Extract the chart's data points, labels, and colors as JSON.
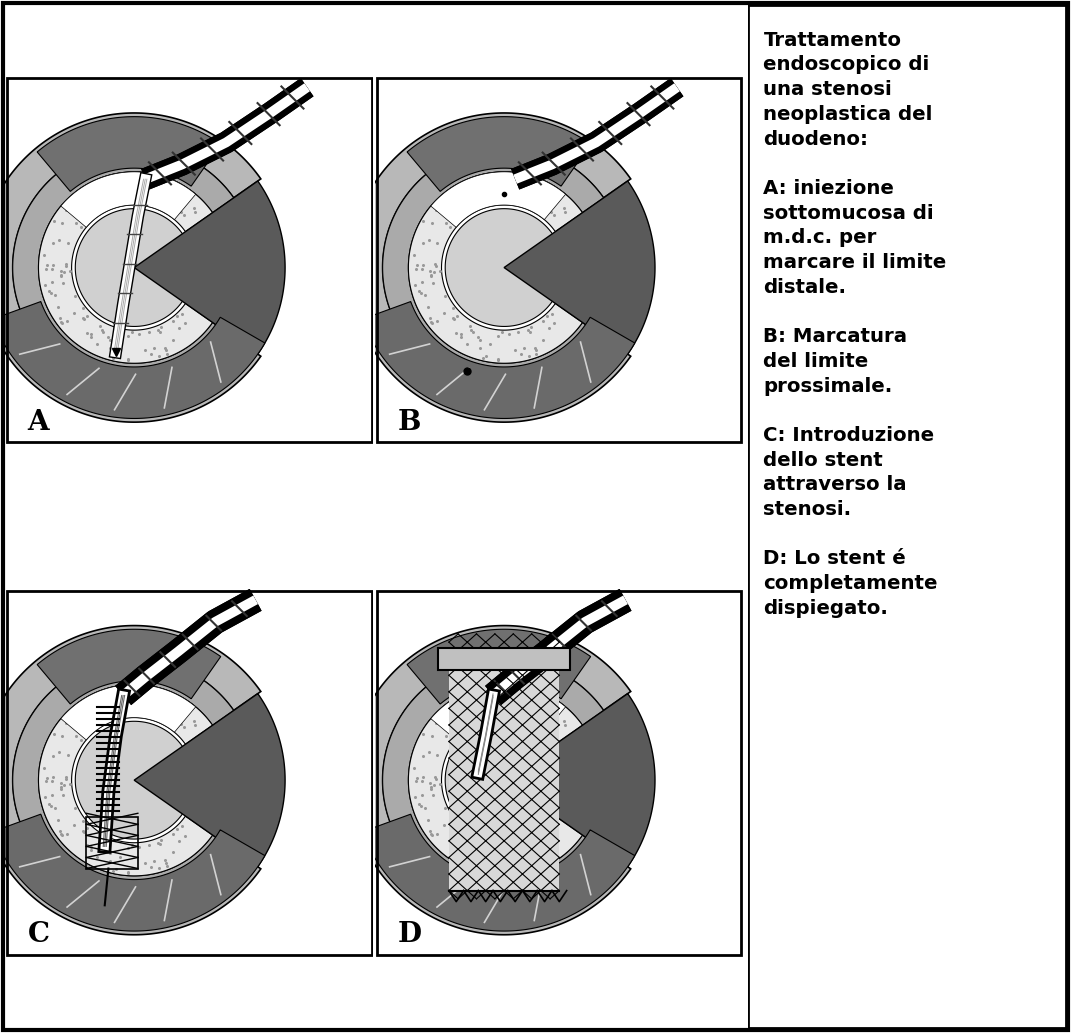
{
  "text_block": "Trattamento\nendoscopico di\nuna stenosi\nneoplastica del\nduodeno:\n\nA: iniezione\nsottomucosa di\nm.d.c. per\nmarcare il limite\ndistale.\n\nB: Marcatura\ndel limite\nprossimale.\n\nC: Introduzione\ndello stent\nattraverso la\nstenosi.\n\nD: Lo stent é\ncompletamente\ndispiegato.",
  "panel_labels": [
    "A",
    "B",
    "C",
    "D"
  ],
  "bg_color": "#ffffff",
  "figure_width": 10.71,
  "figure_height": 10.33,
  "dpi": 100,
  "colors": {
    "outer_wall": "#b8b8b8",
    "stipple_zone": "#e8e8e8",
    "dark_tissue": "#5a5a5a",
    "medium_tissue": "#888888",
    "lumen_bg": "#d0d0d0",
    "white_lumen": "#f0f0f0",
    "scope_black": "#111111",
    "scope_white": "#eeeeee",
    "bone_white": "#f5f5f5"
  }
}
